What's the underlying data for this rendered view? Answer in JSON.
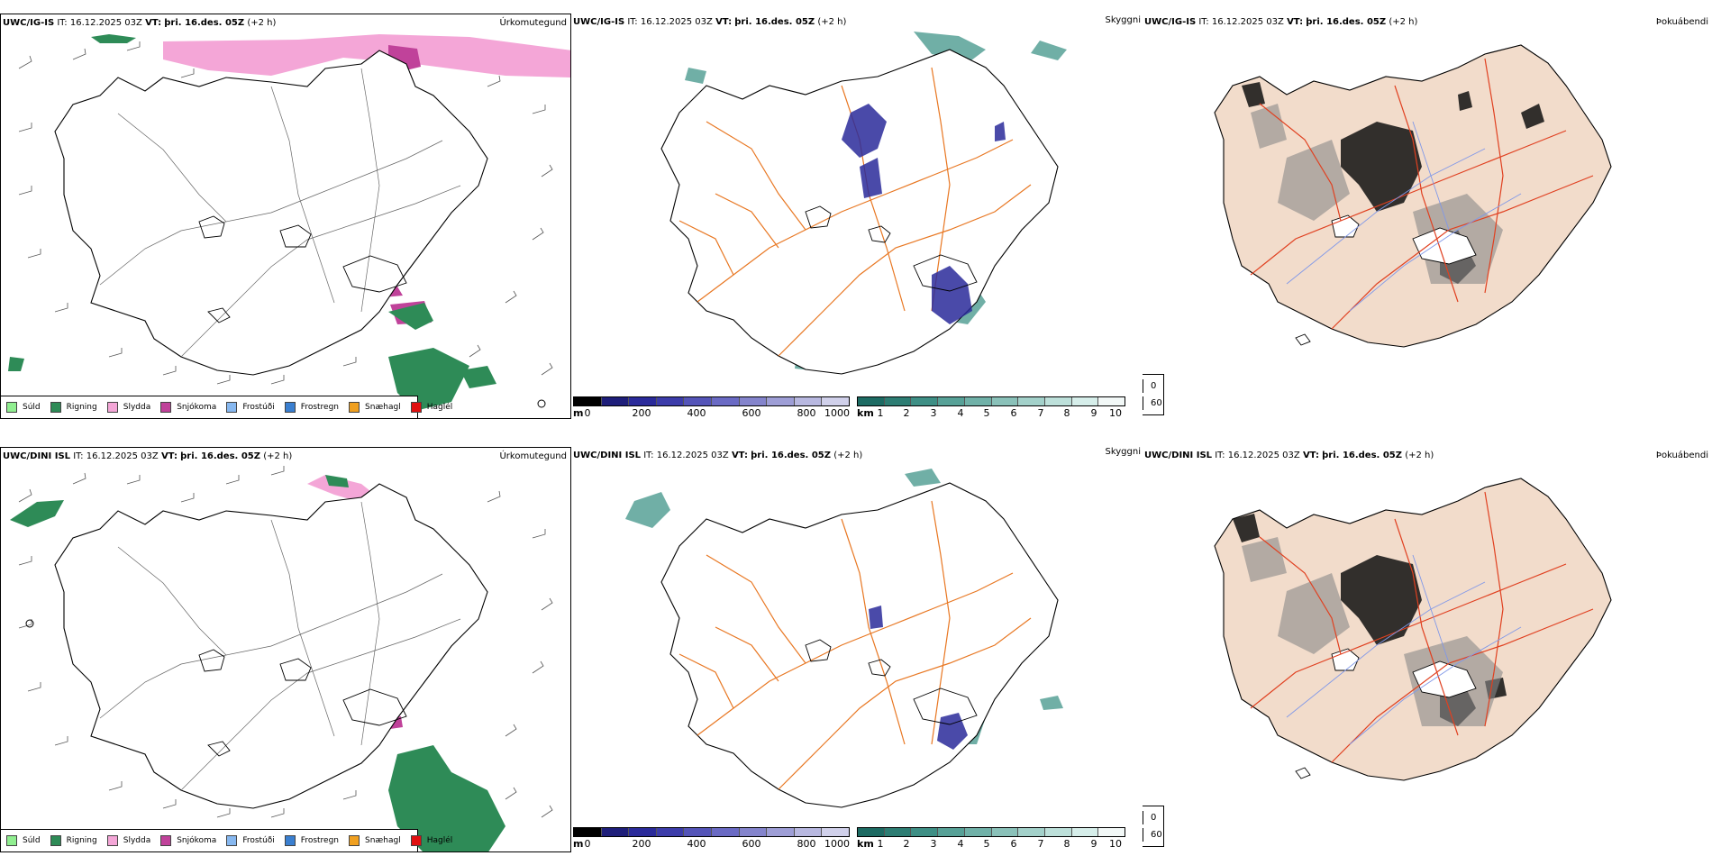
{
  "rows": [
    {
      "precip": {
        "model": "UWC/IG-IS",
        "it_label": "IT:",
        "it_value": "16.12.2025 03Z",
        "vt_label": "VT:",
        "vt_value": "þri. 16.des. 05Z",
        "lead": "(+2 h)",
        "type": "Úrkomutegund"
      },
      "cloud": {
        "model": "UWC/IG-IS",
        "it_label": "IT:",
        "it_value": "16.12.2025 03Z",
        "vt_label": "VT:",
        "vt_value": "þri. 16.des. 05Z",
        "lead": "(+2 h)",
        "type": "Skyggni"
      },
      "fog": {
        "model": "UWC/IG-IS",
        "it_label": "IT:",
        "it_value": "16.12.2025 03Z",
        "vt_label": "VT:",
        "vt_value": "þri. 16.des. 05Z",
        "lead": "(+2 h)",
        "type": "Þokuábendi"
      }
    },
    {
      "precip": {
        "model": "UWC/DINI ISL",
        "it_label": "IT:",
        "it_value": "16.12.2025 03Z",
        "vt_label": "VT:",
        "vt_value": "þri. 16.des. 05Z",
        "lead": "(+2 h)",
        "type": "Úrkomutegund"
      },
      "cloud": {
        "model": "UWC/DINI ISL",
        "it_label": "IT:",
        "it_value": "16.12.2025 03Z",
        "vt_label": "VT:",
        "vt_value": "þri. 16.des. 05Z",
        "lead": "(+2 h)",
        "type": "Skyggni"
      },
      "fog": {
        "model": "UWC/DINI ISL",
        "it_label": "IT:",
        "it_value": "16.12.2025 03Z",
        "vt_label": "VT:",
        "vt_value": "þri. 16.des. 05Z",
        "lead": "(+2 h)",
        "type": "Þokuábendi"
      }
    }
  ],
  "precip_legend": [
    {
      "label": "Súld",
      "color": "#90ee90"
    },
    {
      "label": "Rigning",
      "color": "#2e8b57"
    },
    {
      "label": "Slydda",
      "color": "#f4a6d7"
    },
    {
      "label": "Snjókoma",
      "color": "#c0429a"
    },
    {
      "label": "Frostúði",
      "color": "#87b8f0"
    },
    {
      "label": "Frostregn",
      "color": "#3a7fd0"
    },
    {
      "label": "Snæhagl",
      "color": "#f0a020"
    },
    {
      "label": "Haglél",
      "color": "#e01010"
    }
  ],
  "cloudbase_scale": {
    "unit": "m",
    "ticks": [
      "0",
      "200",
      "400",
      "600",
      "800",
      "1000"
    ],
    "colors": [
      "#000000",
      "#1e1e7a",
      "#2a2a9a",
      "#3c3caa",
      "#5454b8",
      "#6a6ac4",
      "#8484cc",
      "#9e9ed6",
      "#b8b8e0",
      "#d0d0ea"
    ]
  },
  "visibility_scale": {
    "unit": "km",
    "ticks": [
      "1",
      "2",
      "3",
      "4",
      "5",
      "6",
      "7",
      "8",
      "9",
      "10"
    ],
    "colors": [
      "#1d6b63",
      "#2d7d73",
      "#3e8f85",
      "#57a197",
      "#70b1a8",
      "#8ac1b9",
      "#a3d1ca",
      "#bde0da",
      "#d6eeea",
      "#f2f8f7"
    ]
  },
  "fog_legend": [
    {
      "label": "0",
      "color": "#000000"
    },
    {
      "label": "60",
      "color": "#ffffff"
    }
  ],
  "colors": {
    "coast": "#000000",
    "roads_orange": "#e87722",
    "roads_red": "#e04020",
    "rivers": "#8098e8",
    "land_fog": "#f2dccb",
    "rain": "#2e8b57",
    "sleet": "#f4a6d7",
    "snow": "#c0429a",
    "cloud_low": "#2a2a9a",
    "vis_teal": "#3e8f85"
  }
}
